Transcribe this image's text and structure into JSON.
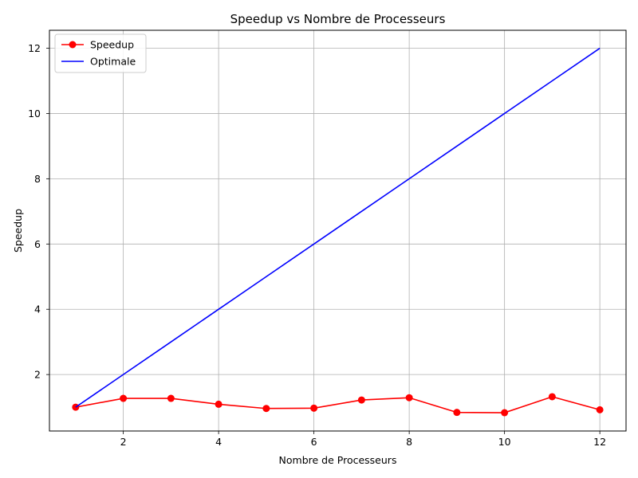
{
  "chart_data": {
    "type": "line",
    "title": "Speedup vs Nombre de Processeurs",
    "xlabel": "Nombre de Processeurs",
    "ylabel": "Speedup",
    "xlim": [
      0.45,
      12.55
    ],
    "ylim": [
      0.27,
      12.55
    ],
    "xticks": [
      2,
      4,
      6,
      8,
      10,
      12
    ],
    "yticks": [
      2,
      4,
      6,
      8,
      10,
      12
    ],
    "grid": true,
    "legend_position": "upper-left",
    "series": [
      {
        "name": "Speedup",
        "color": "#ff0000",
        "marker": "circle",
        "x": [
          1,
          2,
          3,
          4,
          5,
          6,
          7,
          8,
          9,
          10,
          11,
          12
        ],
        "y": [
          1.0,
          1.27,
          1.27,
          1.09,
          0.96,
          0.97,
          1.22,
          1.29,
          0.84,
          0.83,
          1.32,
          0.92
        ]
      },
      {
        "name": "Optimale",
        "color": "#0000ff",
        "marker": "none",
        "x": [
          1,
          2,
          3,
          4,
          5,
          6,
          7,
          8,
          9,
          10,
          11,
          12
        ],
        "y": [
          1,
          2,
          3,
          4,
          5,
          6,
          7,
          8,
          9,
          10,
          11,
          12
        ]
      }
    ]
  }
}
